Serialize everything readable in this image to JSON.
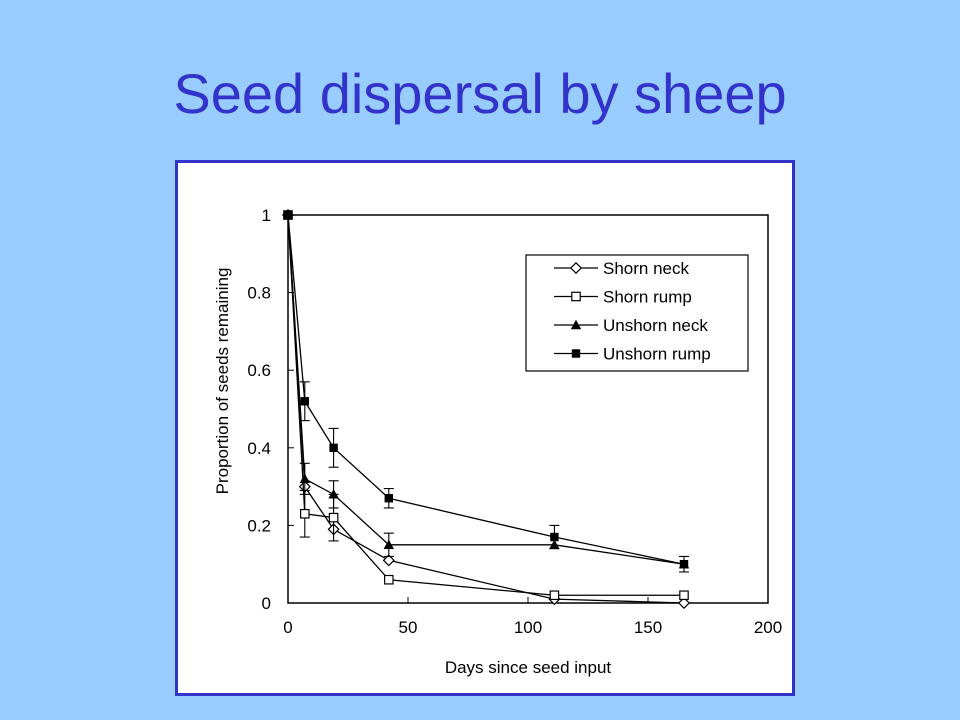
{
  "slide": {
    "title": "Seed dispersal by sheep"
  },
  "colors": {
    "background": "#99ccff",
    "title": "#3333cc",
    "frame": "#3333cc"
  },
  "chart_data": {
    "type": "line",
    "title": "",
    "xlabel": "Days since seed input",
    "ylabel": "Proportion of seeds remaining",
    "xlim": [
      0,
      200
    ],
    "ylim": [
      0,
      1
    ],
    "xticks": [
      0,
      50,
      100,
      150,
      200
    ],
    "xtick_labels": [
      "0",
      "50",
      "100",
      "150",
      "200"
    ],
    "yticks": [
      0,
      0.2,
      0.4,
      0.6,
      0.8,
      1
    ],
    "ytick_labels": [
      "0",
      "0.2",
      "0.4",
      "0.6",
      "0.8",
      "1"
    ],
    "grid": false,
    "legend_position": "top-right",
    "x": [
      0,
      7,
      19,
      42,
      111,
      165
    ],
    "series": [
      {
        "name": "Shorn neck",
        "marker": "diamond-open",
        "values": [
          1.0,
          0.3,
          0.19,
          0.11,
          0.01,
          0.0
        ],
        "errors": [
          0,
          0,
          0,
          0,
          0,
          0
        ]
      },
      {
        "name": "Shorn rump",
        "marker": "square-open",
        "values": [
          1.0,
          0.23,
          0.22,
          0.06,
          0.02,
          0.02
        ],
        "errors": [
          0,
          0.06,
          0.06,
          0,
          0,
          0
        ]
      },
      {
        "name": "Unshorn neck",
        "marker": "triangle-filled",
        "values": [
          1.0,
          0.32,
          0.28,
          0.15,
          0.15,
          0.1
        ],
        "errors": [
          0,
          0.04,
          0.035,
          0.03,
          0,
          0
        ]
      },
      {
        "name": "Unshorn rump",
        "marker": "square-filled",
        "values": [
          1.0,
          0.52,
          0.4,
          0.27,
          0.17,
          0.1
        ],
        "errors": [
          0,
          0.05,
          0.05,
          0.025,
          0.03,
          0.02
        ]
      }
    ]
  }
}
